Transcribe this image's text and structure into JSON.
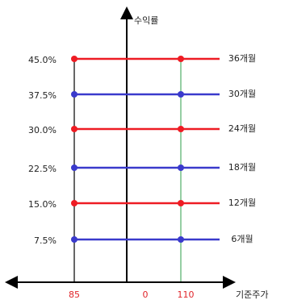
{
  "y_axis_title": "수익률",
  "x_axis_title": "기준주가",
  "x_labels": [
    "85",
    "0",
    "110"
  ],
  "levels": [
    {
      "rate": "45.0%",
      "period": "36개월",
      "color": "#ee1c24"
    },
    {
      "rate": "37.5%",
      "period": "30개월",
      "color": "#3a3acc"
    },
    {
      "rate": "30.0%",
      "period": "24개월",
      "color": "#ee1c24"
    },
    {
      "rate": "22.5%",
      "period": "18개월",
      "color": "#3a3acc"
    },
    {
      "rate": "15.0%",
      "period": "12개월",
      "color": "#ee1c24"
    },
    {
      "rate": "7.5%",
      "period": "6개월",
      "color": "#3a3acc"
    }
  ]
}
